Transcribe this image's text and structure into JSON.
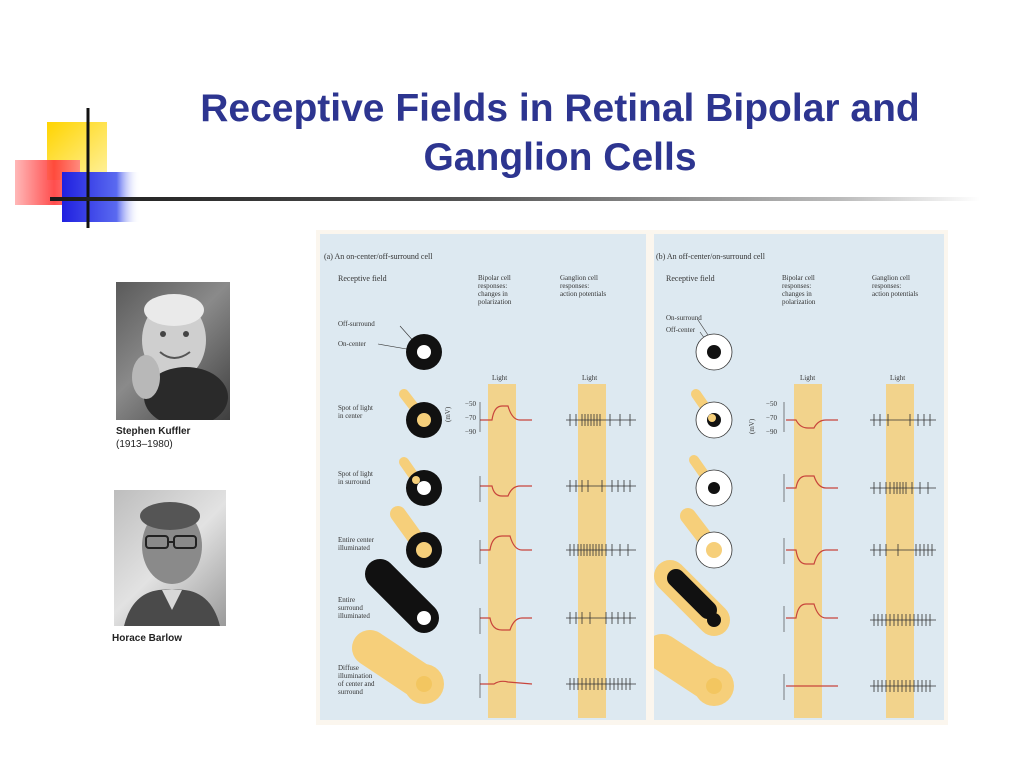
{
  "slide": {
    "title_line1": "Receptive Fields in Retinal Bipolar and",
    "title_line2": "Ganglion Cells"
  },
  "portraits": [
    {
      "name": "Stephen Kuffler",
      "years": "(1913–1980)"
    },
    {
      "name": "Horace Barlow"
    }
  ],
  "figure": {
    "panel_a": {
      "heading": "(a) An on-center/off-surround cell",
      "col_receptive": "Receptive field",
      "col_bipolar_1": "Bipolar cell",
      "col_bipolar_2": "responses:",
      "col_bipolar_3": "changes in",
      "col_bipolar_4": "polarization",
      "col_ganglion_1": "Ganglion cell",
      "col_ganglion_2": "responses:",
      "col_ganglion_3": "action potentials",
      "label_surround": "Off-surround",
      "label_center": "On-center",
      "light_bipolar": "Light",
      "light_ganglion": "Light",
      "axis_unit": "(mV)",
      "tick_50": "−50",
      "tick_70": "−70",
      "tick_90": "−90",
      "rows": [
        {
          "l1": "Spot of light",
          "l2": "in center",
          "l3": "",
          "l4": ""
        },
        {
          "l1": "Spot of light",
          "l2": "in surround",
          "l3": "",
          "l4": ""
        },
        {
          "l1": "Entire center",
          "l2": "illuminated",
          "l3": "",
          "l4": ""
        },
        {
          "l1": "Entire",
          "l2": "surround",
          "l3": "illuminated",
          "l4": ""
        },
        {
          "l1": "Diffuse",
          "l2": "illumination",
          "l3": "of center and",
          "l4": "surround"
        }
      ]
    },
    "panel_b": {
      "heading": "(b) An off-center/on-surround cell",
      "col_receptive": "Receptive field",
      "col_bipolar_1": "Bipolar cell",
      "col_bipolar_2": "responses:",
      "col_bipolar_3": "changes in",
      "col_bipolar_4": "polarization",
      "col_ganglion_1": "Ganglion cell",
      "col_ganglion_2": "responses:",
      "col_ganglion_3": "action potentials",
      "label_surround": "On-surround",
      "label_center": "Off-center",
      "light_bipolar": "Light",
      "light_ganglion": "Light",
      "axis_unit": "(mV)",
      "tick_50": "−50",
      "tick_70": "−70",
      "tick_90": "−90"
    },
    "colors": {
      "panel_bg": "#dde9f1",
      "light_band": "#f6cf7a",
      "trace": "#c8453c",
      "title": "#2d3590"
    }
  }
}
